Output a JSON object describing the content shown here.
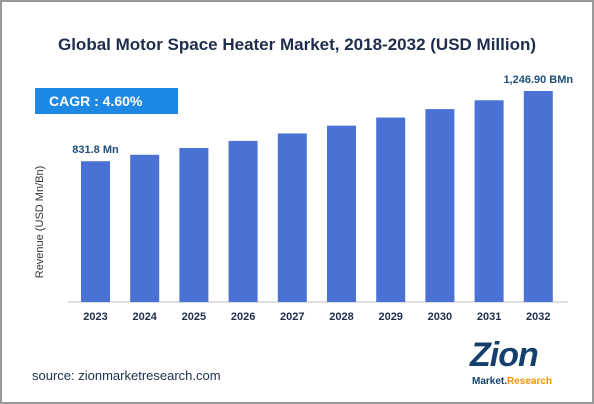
{
  "chart_data": {
    "type": "bar",
    "title": "Global Motor Space Heater Market, 2018-2032 (USD Million)",
    "ylabel": "Revenue (USD Mn/Bn)",
    "xlabel": "",
    "categories": [
      "2023",
      "2024",
      "2025",
      "2026",
      "2027",
      "2028",
      "2029",
      "2030",
      "2031",
      "2032"
    ],
    "values": [
      831.8,
      870,
      910,
      952,
      996,
      1042,
      1090,
      1140,
      1192,
      1246.9
    ],
    "ylim": [
      0,
      1300
    ],
    "data_labels": [
      {
        "index": 0,
        "text": "831.8 Mn"
      },
      {
        "index": 9,
        "text": "1,246.90 BMn"
      }
    ],
    "bar_color": "#4a72d4",
    "grid": false,
    "legend": "none"
  },
  "cagr_badge": "CAGR : 4.60%",
  "source": "source: zionmarketresearch.com",
  "logo": {
    "main": "Zion",
    "sub_1": "Market.",
    "sub_2": "Research"
  }
}
